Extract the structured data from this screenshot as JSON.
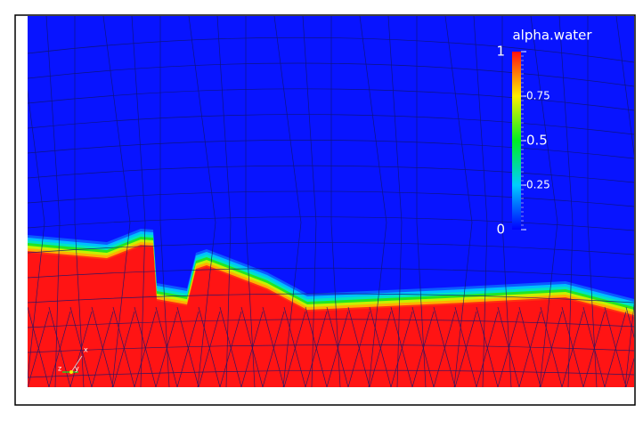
{
  "legend": {
    "title": "alpha.water",
    "ticks": [
      1,
      0.75,
      0.5,
      0.25,
      0
    ]
  },
  "orientation_axes": {
    "x": "x",
    "y": "y",
    "z": "z"
  }
}
